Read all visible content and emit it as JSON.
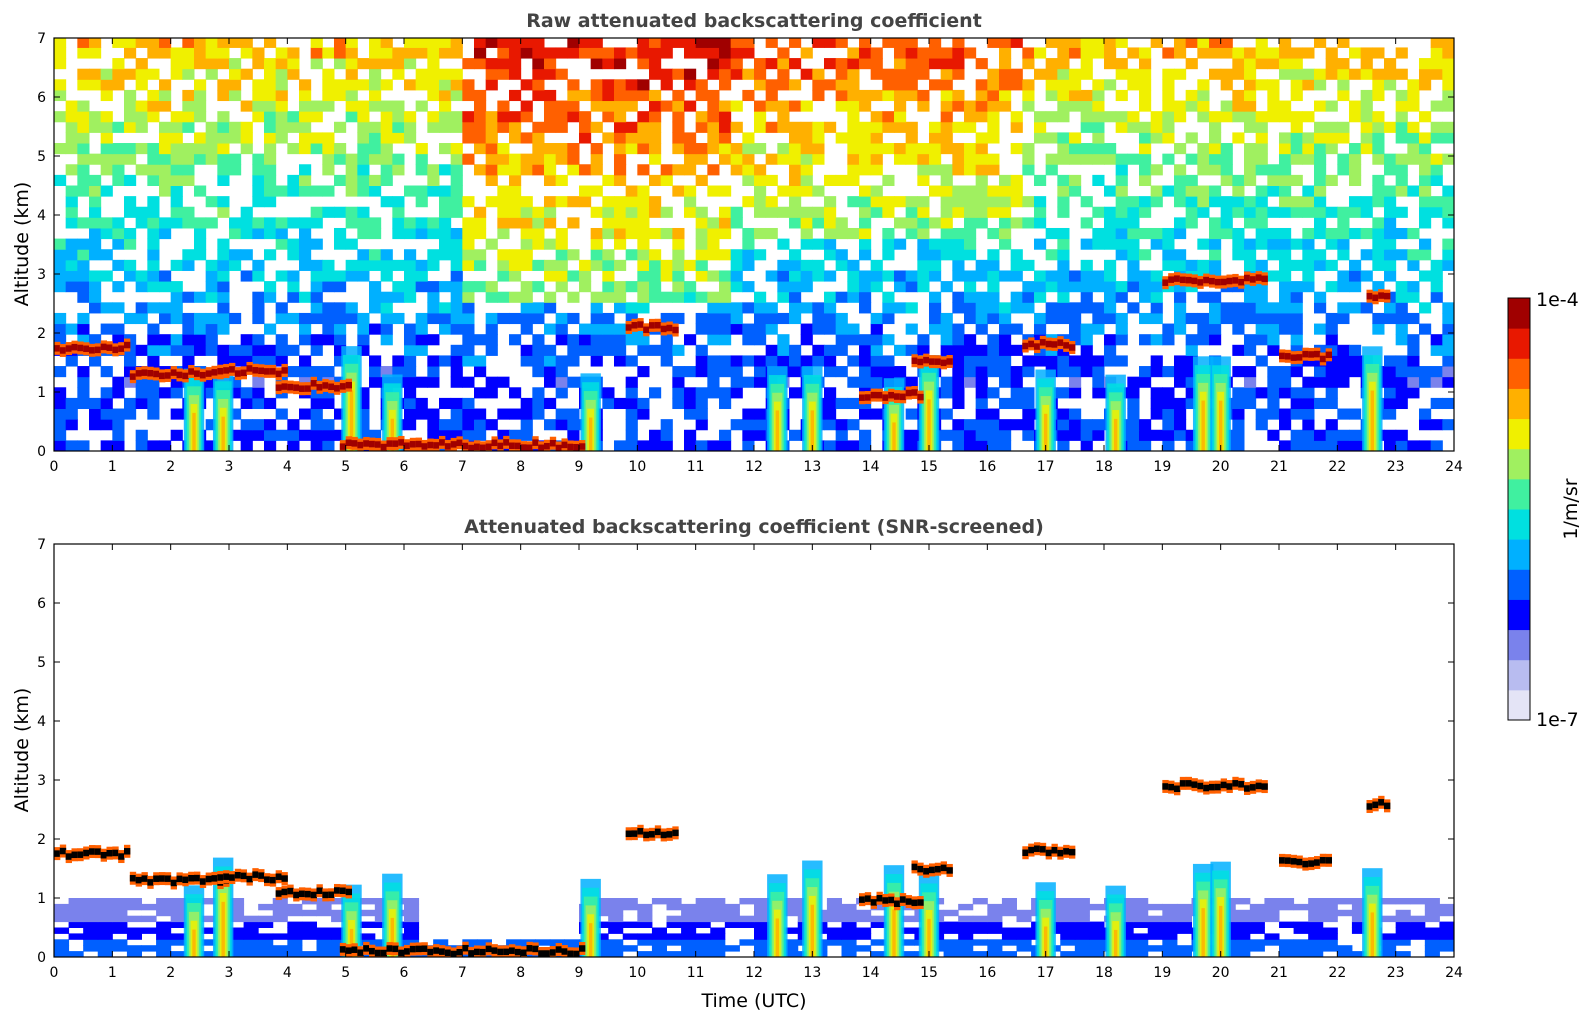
{
  "colormap": [
    "#e4e4f6",
    "#b8bcf0",
    "#7a82ec",
    "#0000ff",
    "#0060ff",
    "#00b0ff",
    "#00e0e0",
    "#40f0a0",
    "#a0f060",
    "#f0f000",
    "#ffb000",
    "#ff6000",
    "#e81800",
    "#a00000"
  ],
  "colorbar": {
    "min_label": "1e-7",
    "max_label": "1e-4",
    "unit": "1/m/sr",
    "scale": "log"
  },
  "chart_data": [
    {
      "type": "heatmap",
      "title": "Raw attenuated backscattering coefficient",
      "xlabel": "",
      "ylabel": "Altitude (km)",
      "xlim": [
        0,
        24
      ],
      "ylim": [
        0,
        7
      ],
      "xticks": [
        "0",
        "1",
        "2",
        "3",
        "4",
        "5",
        "6",
        "7",
        "8",
        "9",
        "10",
        "11",
        "12",
        "13",
        "14",
        "15",
        "16",
        "17",
        "18",
        "19",
        "20",
        "21",
        "22",
        "23",
        "24"
      ],
      "yticks": [
        "0",
        "1",
        "2",
        "3",
        "4",
        "5",
        "6",
        "7"
      ],
      "colorbar_range": [
        1e-07,
        0.0001
      ],
      "grid": false,
      "features": {
        "noise_field": "background noise increasing with altitude, strongest (orange/red) 7-16 UTC above 3 km",
        "cloud_layers": [
          {
            "t0": 0.0,
            "t1": 1.3,
            "alt": 1.75
          },
          {
            "t0": 1.3,
            "t1": 3.0,
            "alt": 1.3
          },
          {
            "t0": 2.8,
            "t1": 4.0,
            "alt": 1.35
          },
          {
            "t0": 3.8,
            "t1": 5.0,
            "alt": 1.1
          },
          {
            "t0": 4.9,
            "t1": 9.0,
            "alt": 0.1
          },
          {
            "t0": 9.8,
            "t1": 10.6,
            "alt": 2.1
          },
          {
            "t0": 13.8,
            "t1": 14.8,
            "alt": 0.95
          },
          {
            "t0": 14.7,
            "t1": 15.3,
            "alt": 1.5
          },
          {
            "t0": 16.6,
            "t1": 17.5,
            "alt": 1.8
          },
          {
            "t0": 19.0,
            "t1": 20.8,
            "alt": 2.9
          },
          {
            "t0": 21.0,
            "t1": 21.9,
            "alt": 1.6
          },
          {
            "t0": 22.5,
            "t1": 22.9,
            "alt": 2.6
          }
        ],
        "precipitation_shafts": [
          2.4,
          2.9,
          5.1,
          5.8,
          9.2,
          12.4,
          13.0,
          14.4,
          15.0,
          17.0,
          18.2,
          19.7,
          20.0,
          22.6
        ]
      }
    },
    {
      "type": "heatmap",
      "title": "Attenuated backscattering coefficient (SNR-screened)",
      "xlabel": "Time (UTC)",
      "ylabel": "Altitude (km)",
      "xlim": [
        0,
        24
      ],
      "ylim": [
        0,
        7
      ],
      "xticks": [
        "0",
        "1",
        "2",
        "3",
        "4",
        "5",
        "6",
        "7",
        "8",
        "9",
        "10",
        "11",
        "12",
        "13",
        "14",
        "15",
        "16",
        "17",
        "18",
        "19",
        "20",
        "21",
        "22",
        "23",
        "24"
      ],
      "yticks": [
        "0",
        "1",
        "2",
        "3",
        "4",
        "5",
        "6",
        "7"
      ],
      "colorbar_range": [
        1e-07,
        0.0001
      ],
      "grid": false,
      "features": {
        "noise_field": "screened: white above boundary layer, blue aerosol layer below ~0.8 km",
        "cloud_layers": [
          {
            "t0": 0.0,
            "t1": 1.3,
            "alt": 1.75
          },
          {
            "t0": 1.3,
            "t1": 3.0,
            "alt": 1.3
          },
          {
            "t0": 2.8,
            "t1": 4.0,
            "alt": 1.35
          },
          {
            "t0": 3.8,
            "t1": 5.0,
            "alt": 1.1
          },
          {
            "t0": 4.9,
            "t1": 9.0,
            "alt": 0.1
          },
          {
            "t0": 9.8,
            "t1": 10.6,
            "alt": 2.1
          },
          {
            "t0": 13.8,
            "t1": 14.8,
            "alt": 0.95
          },
          {
            "t0": 14.7,
            "t1": 15.3,
            "alt": 1.5
          },
          {
            "t0": 16.6,
            "t1": 17.5,
            "alt": 1.8
          },
          {
            "t0": 19.0,
            "t1": 20.8,
            "alt": 2.9
          },
          {
            "t0": 21.0,
            "t1": 21.9,
            "alt": 1.6
          },
          {
            "t0": 22.5,
            "t1": 22.9,
            "alt": 2.6
          }
        ],
        "precipitation_shafts": [
          2.4,
          2.9,
          5.1,
          5.8,
          9.2,
          12.4,
          13.0,
          14.4,
          15.0,
          17.0,
          18.2,
          19.7,
          20.0,
          22.6
        ]
      }
    }
  ]
}
